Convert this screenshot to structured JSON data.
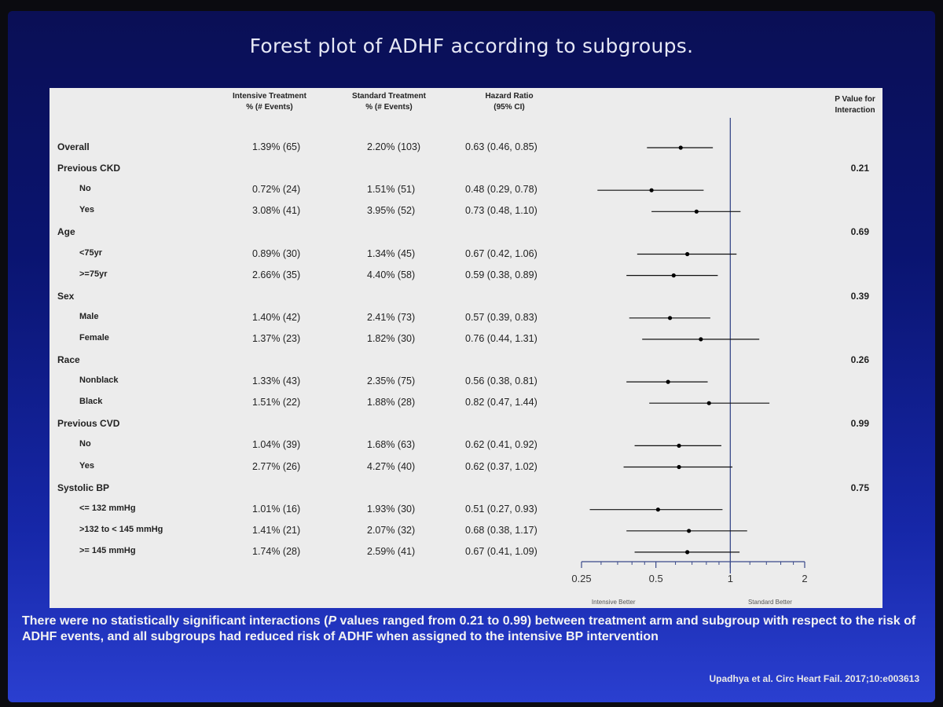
{
  "slide": {
    "title": "Forest plot of ADHF according to subgroups.",
    "footnote_pre": "There were no statistically significant interactions (",
    "footnote_p": "P",
    "footnote_post": " values ranged from 0.21 to 0.99) between treatment arm and subgroup with respect to the risk of ADHF events, and all subgroups had reduced risk of ADHF when assigned to the intensive BP intervention",
    "citation": "Upadhya et al. Circ Heart Fail. 2017;10:e003613"
  },
  "columns": {
    "intensive": [
      "Intensive Treatment",
      "% (# Events)"
    ],
    "standard": [
      "Standard Treatment",
      "% (# Events)"
    ],
    "hr": [
      "Hazard Ratio",
      "(95% CI)"
    ],
    "pval": [
      "P Value for",
      "Interaction"
    ]
  },
  "chart_data": {
    "type": "forest",
    "x_scale": "log",
    "xlim": [
      0.25,
      2
    ],
    "x_ticks": [
      0.25,
      0.5,
      1,
      2
    ],
    "x_tick_labels": [
      "0.25",
      "0.5",
      "1",
      "2"
    ],
    "reference_line": 1,
    "axis_left_label": "Intensive Better",
    "axis_right_label": "Standard Better",
    "rows": [
      {
        "label": "Overall",
        "kind": "group",
        "intensive": "1.39% (65)",
        "standard": "2.20% (103)",
        "hr_text": "0.63 (0.46, 0.85)",
        "hr": 0.63,
        "lo": 0.46,
        "hi": 0.85
      },
      {
        "label": "Previous CKD",
        "kind": "group",
        "pval": "0.21"
      },
      {
        "label": "No",
        "kind": "sub",
        "intensive": "0.72% (24)",
        "standard": "1.51% (51)",
        "hr_text": "0.48 (0.29, 0.78)",
        "hr": 0.48,
        "lo": 0.29,
        "hi": 0.78
      },
      {
        "label": "Yes",
        "kind": "sub",
        "intensive": "3.08% (41)",
        "standard": "3.95% (52)",
        "hr_text": "0.73 (0.48, 1.10)",
        "hr": 0.73,
        "lo": 0.48,
        "hi": 1.1
      },
      {
        "label": "Age",
        "kind": "group",
        "pval": "0.69"
      },
      {
        "label": "<75yr",
        "kind": "sub",
        "intensive": "0.89% (30)",
        "standard": "1.34% (45)",
        "hr_text": "0.67 (0.42, 1.06)",
        "hr": 0.67,
        "lo": 0.42,
        "hi": 1.06
      },
      {
        "label": ">=75yr",
        "kind": "sub",
        "intensive": "2.66% (35)",
        "standard": "4.40% (58)",
        "hr_text": "0.59 (0.38, 0.89)",
        "hr": 0.59,
        "lo": 0.38,
        "hi": 0.89
      },
      {
        "label": "Sex",
        "kind": "group",
        "pval": "0.39"
      },
      {
        "label": "Male",
        "kind": "sub",
        "intensive": "1.40% (42)",
        "standard": "2.41% (73)",
        "hr_text": "0.57 (0.39, 0.83)",
        "hr": 0.57,
        "lo": 0.39,
        "hi": 0.83
      },
      {
        "label": "Female",
        "kind": "sub",
        "intensive": "1.37% (23)",
        "standard": "1.82% (30)",
        "hr_text": "0.76 (0.44, 1.31)",
        "hr": 0.76,
        "lo": 0.44,
        "hi": 1.31
      },
      {
        "label": "Race",
        "kind": "group",
        "pval": "0.26"
      },
      {
        "label": "Nonblack",
        "kind": "sub",
        "intensive": "1.33% (43)",
        "standard": "2.35% (75)",
        "hr_text": "0.56 (0.38, 0.81)",
        "hr": 0.56,
        "lo": 0.38,
        "hi": 0.81
      },
      {
        "label": "Black",
        "kind": "sub",
        "intensive": "1.51% (22)",
        "standard": "1.88% (28)",
        "hr_text": "0.82 (0.47, 1.44)",
        "hr": 0.82,
        "lo": 0.47,
        "hi": 1.44
      },
      {
        "label": "Previous CVD",
        "kind": "group",
        "pval": "0.99"
      },
      {
        "label": "No",
        "kind": "sub",
        "intensive": "1.04% (39)",
        "standard": "1.68% (63)",
        "hr_text": "0.62 (0.41, 0.92)",
        "hr": 0.62,
        "lo": 0.41,
        "hi": 0.92
      },
      {
        "label": "Yes",
        "kind": "sub",
        "intensive": "2.77% (26)",
        "standard": "4.27% (40)",
        "hr_text": "0.62 (0.37, 1.02)",
        "hr": 0.62,
        "lo": 0.37,
        "hi": 1.02
      },
      {
        "label": "Systolic BP",
        "kind": "group",
        "pval": "0.75"
      },
      {
        "label": "<= 132 mmHg",
        "kind": "sub",
        "intensive": "1.01% (16)",
        "standard": "1.93% (30)",
        "hr_text": "0.51 (0.27, 0.93)",
        "hr": 0.51,
        "lo": 0.27,
        "hi": 0.93
      },
      {
        "label": ">132 to < 145 mmHg",
        "kind": "sub",
        "intensive": "1.41% (21)",
        "standard": "2.07% (32)",
        "hr_text": "0.68 (0.38, 1.17)",
        "hr": 0.68,
        "lo": 0.38,
        "hi": 1.17
      },
      {
        "label": ">= 145 mmHg",
        "kind": "sub",
        "intensive": "1.74% (28)",
        "standard": "2.59% (41)",
        "hr_text": "0.67 (0.41, 1.09)",
        "hr": 0.67,
        "lo": 0.41,
        "hi": 1.09
      }
    ]
  }
}
